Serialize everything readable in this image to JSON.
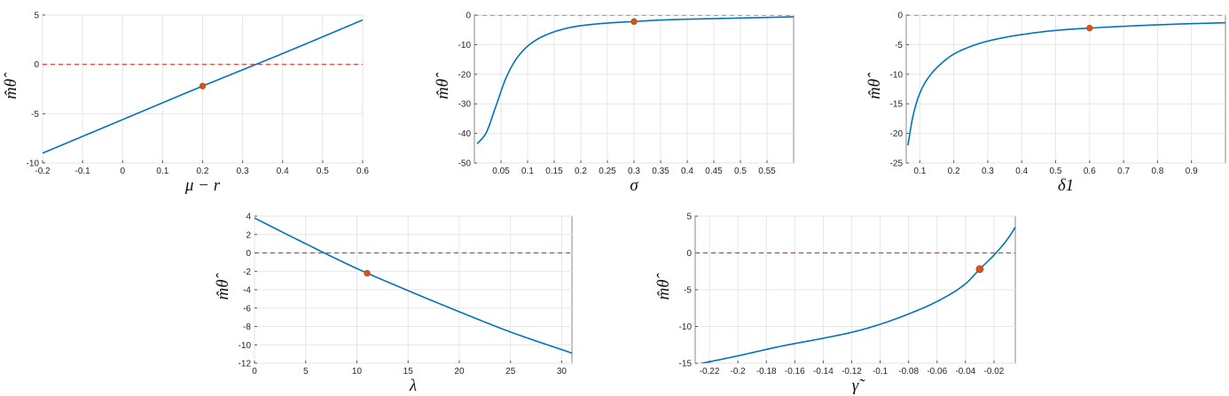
{
  "colors": {
    "curve": "#0072bd",
    "reference_line": "#e8362f",
    "marker": "#d95319"
  },
  "chart_data": [
    {
      "type": "line",
      "xlabel": "μ − r",
      "ylabel": "m̂θ̂",
      "xlim": [
        -0.2,
        0.6
      ],
      "ylim": [
        -10,
        5
      ],
      "xticks": [
        -0.2,
        -0.1,
        0,
        0.1,
        0.2,
        0.3,
        0.4,
        0.5,
        0.6
      ],
      "xtick_labels": [
        "-0.2",
        "-0.1",
        "0",
        "0.1",
        "0.2",
        "0.3",
        "0.4",
        "0.5",
        "0.6"
      ],
      "yticks": [
        -10,
        -5,
        0,
        5
      ],
      "ytick_labels": [
        "-10",
        "-5",
        "0",
        "5"
      ],
      "grid": true,
      "reference_y": 0,
      "series": [
        {
          "x": [
            -0.2,
            0.0,
            0.2,
            0.4,
            0.6
          ],
          "y": [
            -9.0,
            -5.6,
            -2.2,
            1.1,
            4.5
          ]
        }
      ],
      "highlight_point": {
        "x": 0.2,
        "y": -2.2
      }
    },
    {
      "type": "line",
      "xlabel": "σ",
      "ylabel": "m̂θ̂",
      "xlim": [
        0.0,
        0.6
      ],
      "ylim": [
        -50,
        0
      ],
      "xticks": [
        0.05,
        0.1,
        0.15,
        0.2,
        0.25,
        0.3,
        0.35,
        0.4,
        0.45,
        0.5,
        0.55
      ],
      "xtick_labels": [
        "0.05",
        "0.1",
        "0.15",
        "0.2",
        "0.25",
        "0.3",
        "0.35",
        "0.4",
        "0.45",
        "0.5",
        "0.55"
      ],
      "yticks": [
        -50,
        -40,
        -30,
        -20,
        -10,
        0
      ],
      "ytick_labels": [
        "-50",
        "-40",
        "-30",
        "-20",
        "-10",
        "0"
      ],
      "grid": true,
      "reference_y": 0,
      "series": [
        {
          "x": [
            0.005,
            0.02,
            0.04,
            0.06,
            0.08,
            0.1,
            0.12,
            0.14,
            0.16,
            0.18,
            0.2,
            0.25,
            0.3,
            0.35,
            0.4,
            0.45,
            0.5,
            0.55,
            0.6
          ],
          "y": [
            -43.5,
            -40.5,
            -31.0,
            -21.0,
            -14.5,
            -10.5,
            -8.0,
            -6.3,
            -5.1,
            -4.2,
            -3.6,
            -2.7,
            -2.2,
            -1.7,
            -1.4,
            -1.2,
            -1.0,
            -0.8,
            -0.6
          ]
        }
      ],
      "highlight_point": {
        "x": 0.3,
        "y": -2.2
      }
    },
    {
      "type": "line",
      "xlabel": "δ1",
      "ylabel": "m̂θ̂",
      "xlim": [
        0.06,
        1.0
      ],
      "ylim": [
        -25,
        0
      ],
      "xticks": [
        0.1,
        0.2,
        0.3,
        0.4,
        0.5,
        0.6,
        0.7,
        0.8,
        0.9
      ],
      "xtick_labels": [
        "0.1",
        "0.2",
        "0.3",
        "0.4",
        "0.5",
        "0.6",
        "0.7",
        "0.8",
        "0.9"
      ],
      "yticks": [
        -25,
        -20,
        -15,
        -10,
        -5,
        0
      ],
      "ytick_labels": [
        "-25",
        "-20",
        "-15",
        "-10",
        "-5",
        "0"
      ],
      "grid": true,
      "reference_y": 0,
      "series": [
        {
          "x": [
            0.065,
            0.08,
            0.1,
            0.12,
            0.15,
            0.2,
            0.25,
            0.3,
            0.4,
            0.5,
            0.6,
            0.7,
            0.8,
            0.9,
            1.0
          ],
          "y": [
            -22.0,
            -17.0,
            -13.2,
            -11.0,
            -8.9,
            -6.6,
            -5.3,
            -4.4,
            -3.3,
            -2.6,
            -2.2,
            -1.9,
            -1.65,
            -1.45,
            -1.3
          ]
        }
      ],
      "highlight_point": {
        "x": 0.6,
        "y": -2.2
      }
    },
    {
      "type": "line",
      "xlabel": "λ",
      "ylabel": "m̂θ̂",
      "xlim": [
        0,
        31
      ],
      "ylim": [
        -12,
        4
      ],
      "xticks": [
        0,
        5,
        10,
        15,
        20,
        25,
        30
      ],
      "xtick_labels": [
        "0",
        "5",
        "10",
        "15",
        "20",
        "25",
        "30"
      ],
      "yticks": [
        -12,
        -10,
        -8,
        -6,
        -4,
        -2,
        0,
        2,
        4
      ],
      "ytick_labels": [
        "-12",
        "-10",
        "-8",
        "-6",
        "-4",
        "-2",
        "0",
        "2",
        "4"
      ],
      "grid": true,
      "reference_y": 0,
      "series": [
        {
          "x": [
            0,
            5,
            10,
            15,
            20,
            25,
            31
          ],
          "y": [
            3.8,
            1.0,
            -1.7,
            -4.1,
            -6.4,
            -8.6,
            -10.9
          ]
        }
      ],
      "highlight_point": {
        "x": 11,
        "y": -2.2
      }
    },
    {
      "type": "line",
      "xlabel": "γ̃",
      "ylabel": "m̂θ̂",
      "xlim": [
        -0.23,
        -0.005
      ],
      "ylim": [
        -15,
        5
      ],
      "xticks": [
        -0.22,
        -0.2,
        -0.18,
        -0.16,
        -0.14,
        -0.12,
        -0.1,
        -0.08,
        -0.06,
        -0.04,
        -0.02
      ],
      "xtick_labels": [
        "-0.22",
        "-0.2",
        "-0.18",
        "-0.16",
        "-0.14",
        "-0.12",
        "-0.1",
        "-0.08",
        "-0.06",
        "-0.04",
        "-0.02"
      ],
      "yticks": [
        -15,
        -10,
        -5,
        0,
        5
      ],
      "ytick_labels": [
        "-15",
        "-10",
        "-5",
        "0",
        "5"
      ],
      "grid": true,
      "reference_y": 0,
      "series": [
        {
          "x": [
            -0.23,
            -0.2,
            -0.17,
            -0.14,
            -0.12,
            -0.1,
            -0.08,
            -0.06,
            -0.04,
            -0.03,
            -0.02,
            -0.01,
            -0.005
          ],
          "y": [
            -15.2,
            -14.0,
            -12.7,
            -11.6,
            -10.8,
            -9.7,
            -8.3,
            -6.6,
            -4.2,
            -2.2,
            -0.3,
            2.0,
            3.5
          ]
        }
      ],
      "highlight_point": {
        "x": -0.03,
        "y": -2.2
      }
    }
  ]
}
